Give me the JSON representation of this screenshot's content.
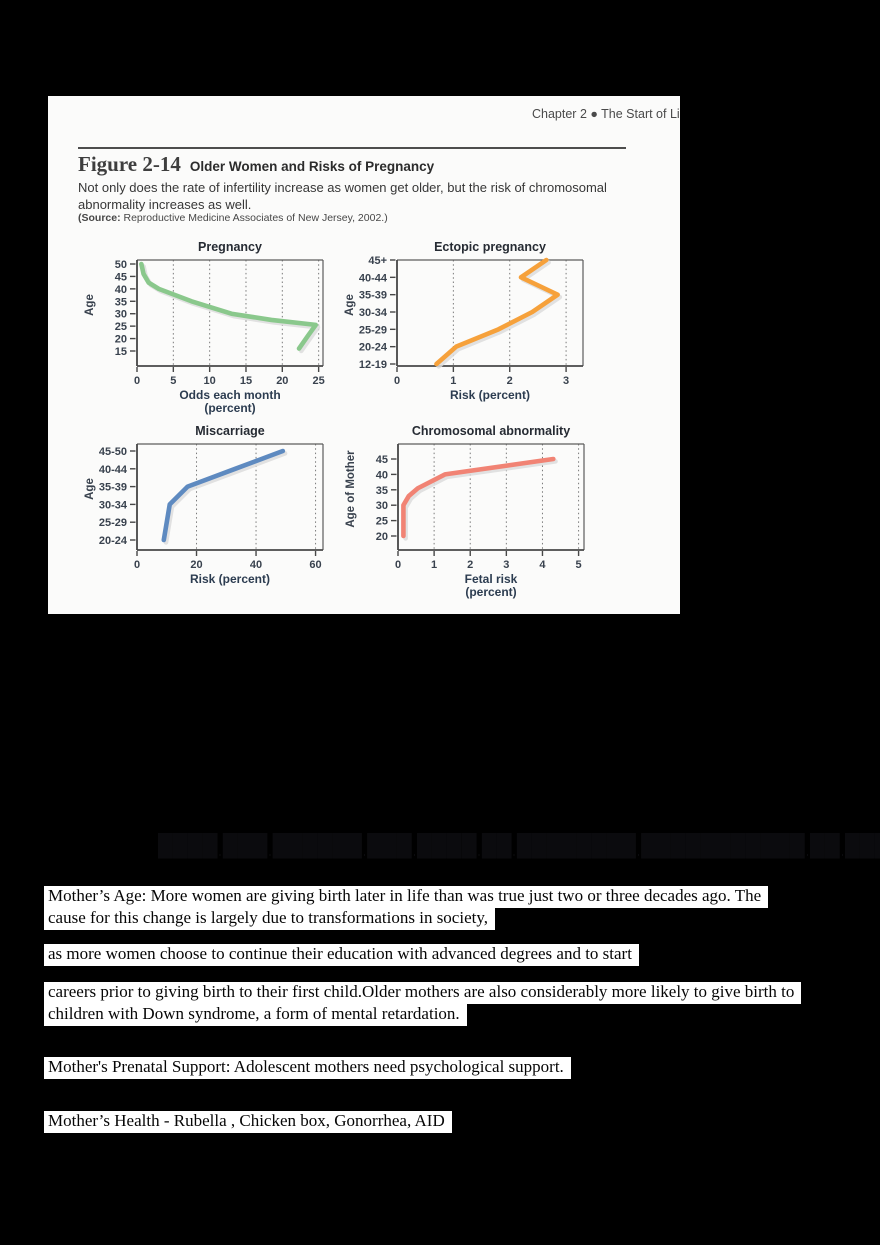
{
  "page_header": {
    "chapter": "Chapter 2  ●  The Start of Li"
  },
  "figure": {
    "label": "Figure 2-14",
    "title": "Older Women and Risks of Pregnancy",
    "caption_line1": "Not only does the rate of infertility increase as women get older, but the risk of chromosomal",
    "caption_line2": "abnormality increases as well.",
    "source_label": "(Source:",
    "source_text": " Reproductive Medicine Associates of New Jersey, 2002.)"
  },
  "chart_data": [
    {
      "type": "line",
      "title": "Pregnancy",
      "xlabel": [
        "Odds each month",
        "(percent)"
      ],
      "ylabel": "Age",
      "x_ticks": [
        0,
        5,
        10,
        15,
        20,
        25
      ],
      "x_domain_max": 25.6,
      "y_ticks": [
        15,
        20,
        25,
        30,
        35,
        40,
        45,
        50
      ],
      "y_inset": [
        15,
        4
      ],
      "points": [
        [
          0.6,
          50
        ],
        [
          0.9,
          46
        ],
        [
          1.6,
          42.5
        ],
        [
          3,
          40
        ],
        [
          7.5,
          35
        ],
        [
          13,
          30
        ],
        [
          18.5,
          27.5
        ],
        [
          24.6,
          25.5
        ],
        [
          23.5,
          21
        ],
        [
          22.3,
          16
        ]
      ],
      "color": "#8ac88c",
      "grid": "vertical-dotted",
      "legend": "none"
    },
    {
      "type": "line",
      "title": "Ectopic pregnancy",
      "xlabel": [
        "Risk (percent)"
      ],
      "ylabel": "Age",
      "x_ticks": [
        0,
        1,
        2,
        3
      ],
      "x_domain_max": 3.3,
      "categories": [
        "12-19",
        "20-24",
        "25-29",
        "30-34",
        "35-39",
        "40-44",
        "45+"
      ],
      "values": [
        0.7,
        1.05,
        1.8,
        2.4,
        2.85,
        2.2,
        2.65
      ],
      "y_inset": [
        2,
        0
      ],
      "color": "#f6a13b",
      "grid": "vertical-dotted",
      "legend": "none"
    },
    {
      "type": "line",
      "title": "Miscarriage",
      "xlabel": [
        "Risk (percent)"
      ],
      "ylabel": "Age",
      "x_ticks": [
        0,
        20,
        40,
        60
      ],
      "x_domain_max": 62.5,
      "categories": [
        "20-24",
        "25-29",
        "30-34",
        "35-39",
        "40-44",
        "45-50"
      ],
      "values": [
        9,
        10,
        11,
        17,
        33,
        49
      ],
      "y_inset": [
        10,
        7
      ],
      "color": "#5e8ac0",
      "grid": "vertical-dotted",
      "legend": "none"
    },
    {
      "type": "line",
      "title": "Chromosomal abnormality",
      "xlabel": [
        "Fetal risk",
        "(percent)"
      ],
      "ylabel": "Age of Mother",
      "x_ticks": [
        0,
        1,
        2,
        3,
        4,
        5
      ],
      "x_domain_max": 5.15,
      "y_ticks": [
        20,
        25,
        30,
        35,
        40,
        45
      ],
      "y_inset": [
        14,
        15
      ],
      "points": [
        [
          0.15,
          20
        ],
        [
          0.15,
          30
        ],
        [
          0.3,
          33
        ],
        [
          0.55,
          35.5
        ],
        [
          1.3,
          40
        ],
        [
          4.3,
          45
        ]
      ],
      "color": "#f18374",
      "grid": "vertical-dotted",
      "legend": "none"
    }
  ],
  "hidden_heading": {
    "silhouette": "████ ███ ██████ ███ ████ ██ ████████ ███████████ ██ ████████",
    "fragment": "d."
  },
  "paragraphs": {
    "p1l1": "Mother’s Age: More women are giving birth later in life than was true just two or three decades ago. The",
    "p1l2": "cause for this change is largely due to transformations in society,",
    "p2l1": "as more women choose to continue their education with advanced degrees and to start",
    "p3l1": "careers prior to giving birth to their first child.Older mothers are also considerably more likely to give birth to",
    "p3l2": "children with Down syndrome, a form of mental retardation.",
    "p4l1": "Mother's Prenatal Support: Adolescent mothers need psychological support.",
    "p5l1": "Mother’s Health - Rubella , Chicken box, Gonorrhea, AID"
  }
}
